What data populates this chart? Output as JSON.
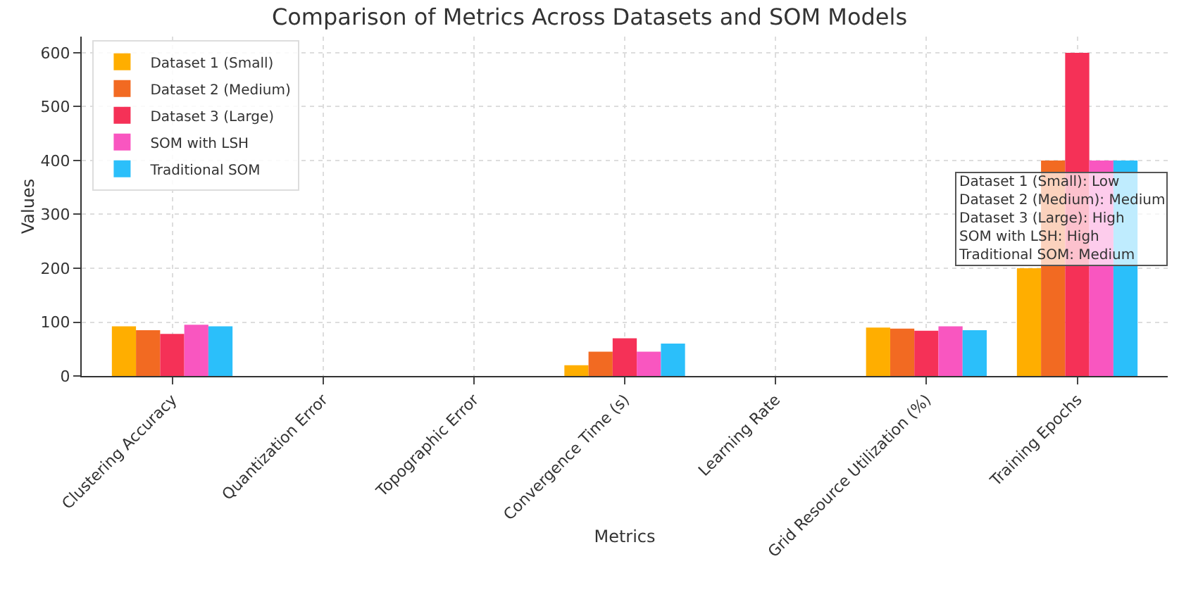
{
  "chart_data": {
    "type": "bar",
    "title": "Comparison of Metrics Across Datasets and SOM Models",
    "xlabel": "Metrics",
    "ylabel": "Values",
    "categories": [
      "Clustering Accuracy",
      "Quantization Error",
      "Topographic Error",
      "Convergence Time (s)",
      "Learning Rate",
      "Grid Resource Utilization (%)",
      "Training Epochs"
    ],
    "series": [
      {
        "name": "Dataset 1 (Small)",
        "color": "#ffae00",
        "values": [
          92,
          0,
          0,
          20,
          0,
          90,
          200
        ]
      },
      {
        "name": "Dataset 2 (Medium)",
        "color": "#f26a22",
        "values": [
          85,
          0,
          0,
          45,
          0,
          88,
          400
        ]
      },
      {
        "name": "Dataset 3 (Large)",
        "color": "#f53157",
        "values": [
          78,
          0,
          0,
          70,
          0,
          84,
          600
        ]
      },
      {
        "name": "SOM with LSH",
        "color": "#f956c0",
        "values": [
          95,
          0,
          0,
          45,
          0,
          92,
          400
        ]
      },
      {
        "name": "Traditional SOM",
        "color": "#2bbffa",
        "values": [
          92,
          0,
          0,
          60,
          0,
          85,
          400
        ]
      }
    ],
    "annotations": [
      "Dataset 1 (Small): Low\nDataset 2 (Medium): Medium\nDataset 3 (Large): High\nSOM with LSH: High\nTraditional SOM: Medium"
    ],
    "ylim": [
      0,
      630
    ],
    "yticks": [
      0,
      100,
      200,
      300,
      400,
      500,
      600
    ],
    "grid": true,
    "legend": "top left"
  }
}
